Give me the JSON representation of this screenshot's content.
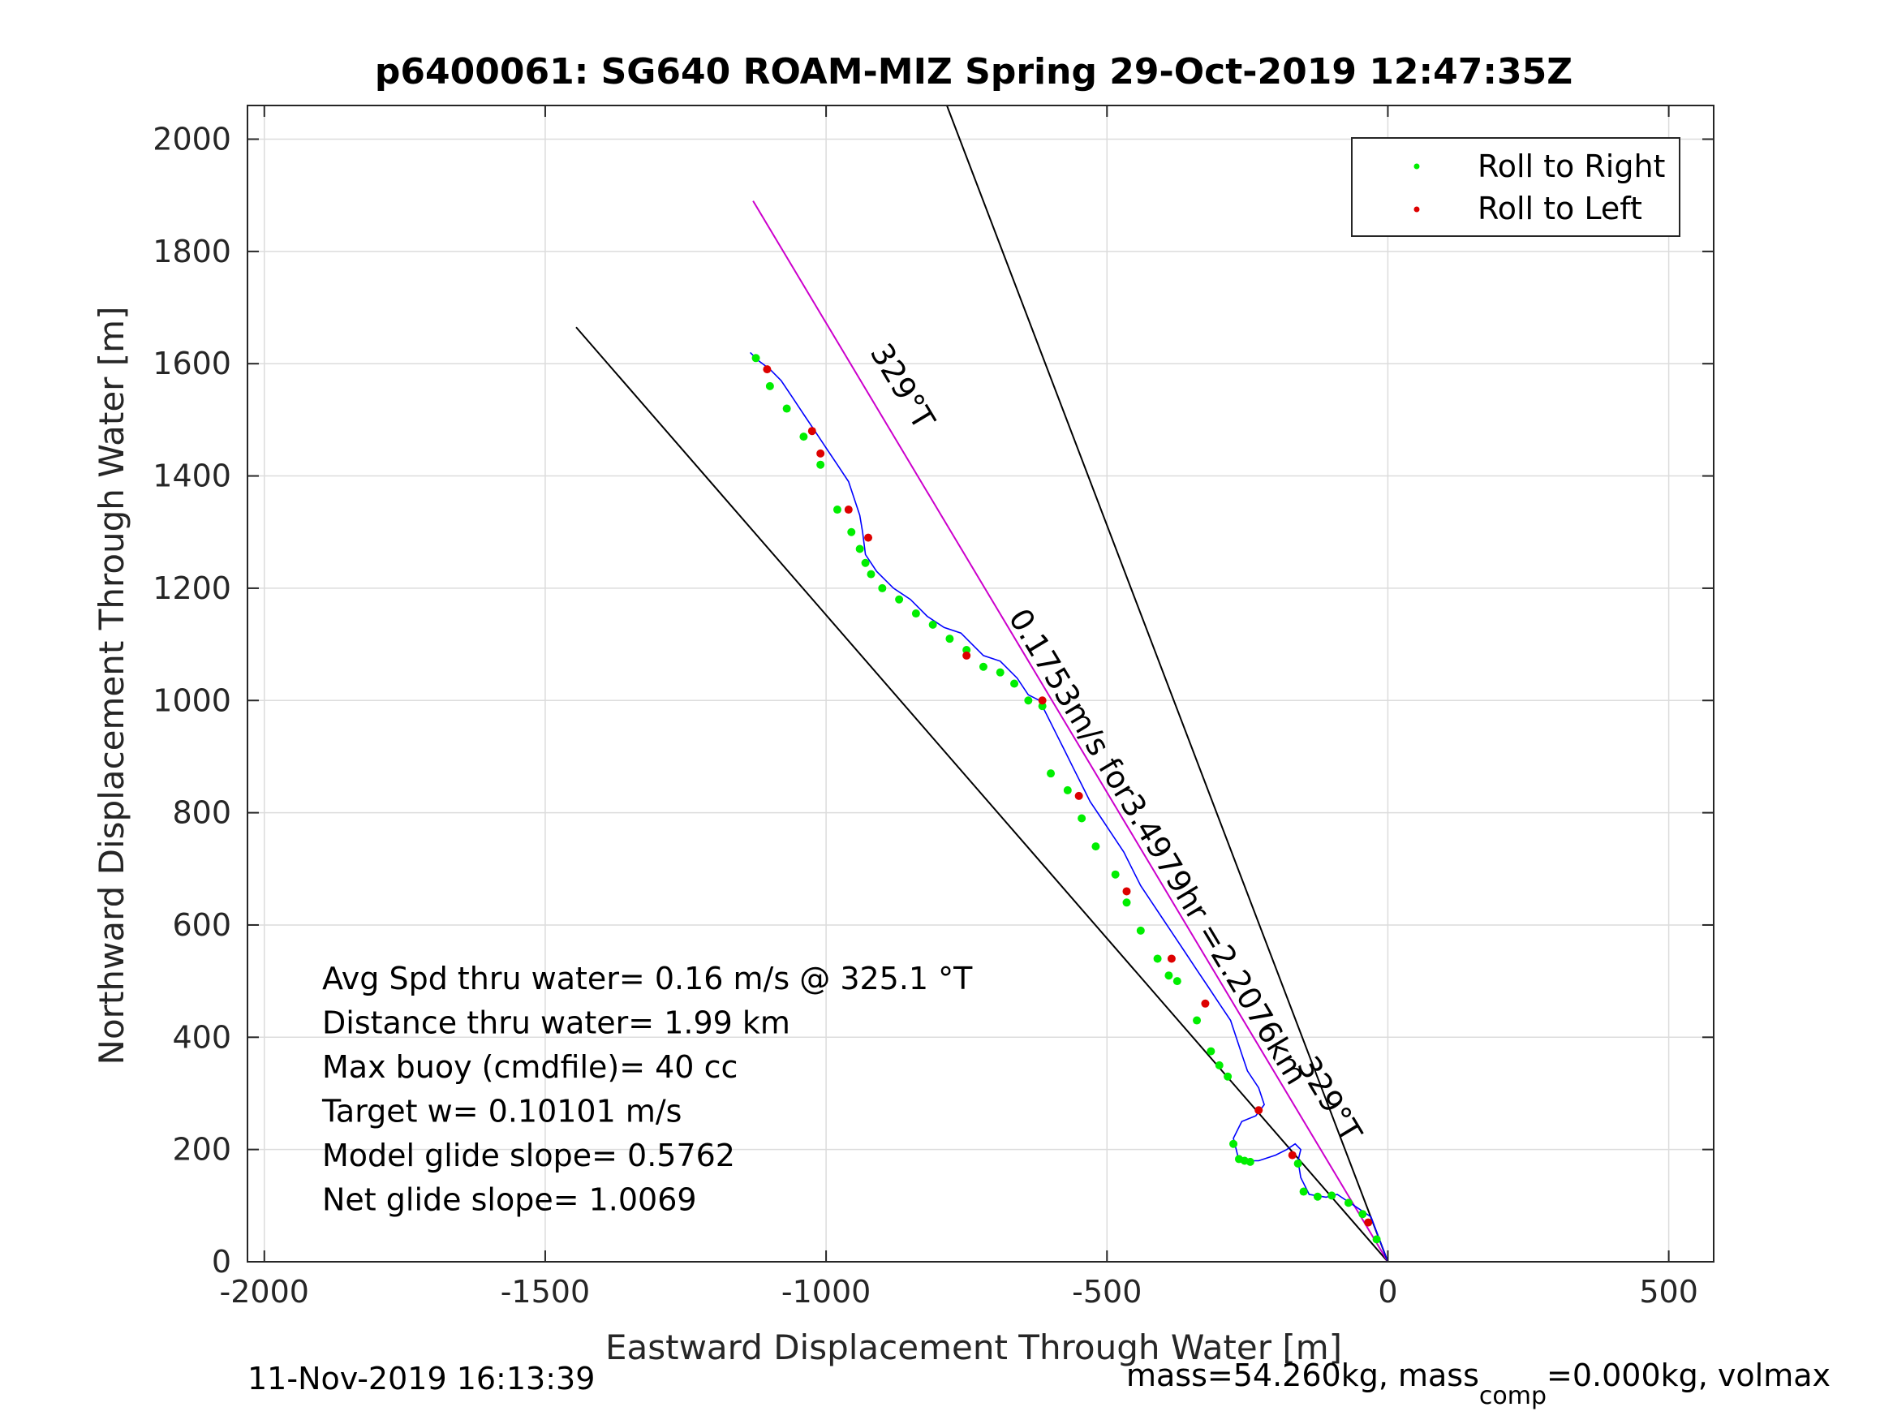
{
  "chart_data": {
    "type": "line",
    "title": "p6400061: SG640 ROAM-MIZ Spring 29-Oct-2019 12:47:35Z",
    "xlabel": "Eastward Displacement Through Water [m]",
    "ylabel": "Northward Displacement Through Water [m]",
    "xlim": [
      -2030,
      580
    ],
    "ylim": [
      0,
      2060
    ],
    "xticks": [
      -2000,
      -1500,
      -1000,
      -500,
      0,
      500
    ],
    "yticks": [
      0,
      200,
      400,
      600,
      800,
      1000,
      1200,
      1400,
      1600,
      1800,
      2000
    ],
    "grid": true,
    "legend": {
      "placement": "top-right",
      "entries": [
        {
          "label": "Roll to Right",
          "color": "#00ee00"
        },
        {
          "label": "Roll to Left",
          "color": "#dd0000"
        }
      ]
    },
    "track": {
      "name": "glider track",
      "color": "#0000ff",
      "x": [
        0,
        -30,
        -60,
        -90,
        -110,
        -140,
        -155,
        -160,
        -155,
        -165,
        -180,
        -200,
        -230,
        -265,
        -275,
        -260,
        -235,
        -220,
        -230,
        -250,
        -260,
        -270,
        -280,
        -300,
        -320,
        -340,
        -360,
        -380,
        -400,
        -420,
        -440,
        -455,
        -470,
        -490,
        -510,
        -530,
        -545,
        -560,
        -575,
        -590,
        -605,
        -620,
        -640,
        -660,
        -690,
        -720,
        -740,
        -760,
        -790,
        -820,
        -850,
        -880,
        -910,
        -930,
        -935,
        -940,
        -950,
        -960,
        -980,
        -1000,
        -1020,
        -1040,
        -1060,
        -1080,
        -1100,
        -1120,
        -1135
      ],
      "y": [
        0,
        80,
        100,
        120,
        115,
        120,
        150,
        180,
        200,
        210,
        200,
        190,
        180,
        180,
        220,
        250,
        260,
        280,
        310,
        340,
        370,
        400,
        430,
        460,
        490,
        520,
        550,
        580,
        610,
        640,
        670,
        700,
        730,
        760,
        790,
        820,
        850,
        880,
        910,
        940,
        970,
        1000,
        1010,
        1040,
        1070,
        1080,
        1100,
        1120,
        1130,
        1150,
        1180,
        1200,
        1230,
        1260,
        1300,
        1330,
        1360,
        1390,
        1420,
        1450,
        1480,
        1510,
        1540,
        1570,
        1590,
        1605,
        1620
      ]
    },
    "roll_right_x": [
      -20,
      -45,
      -70,
      -100,
      -125,
      -150,
      -160,
      -245,
      -255,
      -265,
      -275,
      -285,
      -300,
      -315,
      -340,
      -375,
      -390,
      -410,
      -440,
      -465,
      -485,
      -520,
      -545,
      -570,
      -600,
      -615,
      -640,
      -665,
      -690,
      -720,
      -750,
      -780,
      -810,
      -840,
      -870,
      -900,
      -920,
      -930,
      -940,
      -955,
      -980,
      -1010,
      -1040,
      -1070,
      -1100,
      -1125
    ],
    "roll_right_y": [
      40,
      85,
      105,
      118,
      116,
      125,
      175,
      178,
      180,
      183,
      210,
      330,
      350,
      375,
      430,
      500,
      510,
      540,
      590,
      640,
      690,
      740,
      790,
      840,
      870,
      990,
      1000,
      1030,
      1050,
      1060,
      1090,
      1110,
      1135,
      1155,
      1180,
      1200,
      1225,
      1245,
      1270,
      1300,
      1340,
      1420,
      1470,
      1520,
      1560,
      1610
    ],
    "roll_left_x": [
      -35,
      -170,
      -230,
      -325,
      -385,
      -465,
      -550,
      -615,
      -750,
      -925,
      -960,
      -1010,
      -1025,
      -1105
    ],
    "roll_left_y": [
      70,
      190,
      270,
      460,
      540,
      660,
      830,
      1000,
      1080,
      1290,
      1340,
      1440,
      1480,
      1590
    ],
    "reference_lines": [
      {
        "name": "outer-left",
        "color": "#000000",
        "x": [
          0,
          -1445
        ],
        "y": [
          0,
          1665
        ]
      },
      {
        "name": "heading-line",
        "color": "#cc00cc",
        "x": [
          0,
          -1130
        ],
        "y": [
          0,
          1890
        ]
      },
      {
        "name": "outer-right",
        "color": "#000000",
        "x": [
          0,
          -785
        ],
        "y": [
          0,
          2060
        ]
      }
    ],
    "annotations": [
      {
        "text": "329°T",
        "x": -880,
        "y": 1550,
        "angle": 59
      },
      {
        "text": "0.1753m/s for3.4979hr =2.2076km",
        "x": -425,
        "y": 730,
        "angle": 59
      },
      {
        "text": "329°T",
        "x": -120,
        "y": 280,
        "angle": 59
      }
    ],
    "stats": [
      "Avg Spd thru water=  0.16 m/s @ 325.1 °T",
      "Distance thru water=  1.99 km",
      "Max buoy (cmdfile)= 40 cc",
      "Target w= 0.10101 m/s",
      "Model glide slope= 0.5762",
      "Net glide slope= 1.0069"
    ]
  },
  "footer": {
    "timestamp": "11-Nov-2019 16:13:39",
    "mass_text": "mass=54.260kg, mass",
    "mass_sub": "comp",
    "mass_tail": "=0.000kg, volmax"
  }
}
